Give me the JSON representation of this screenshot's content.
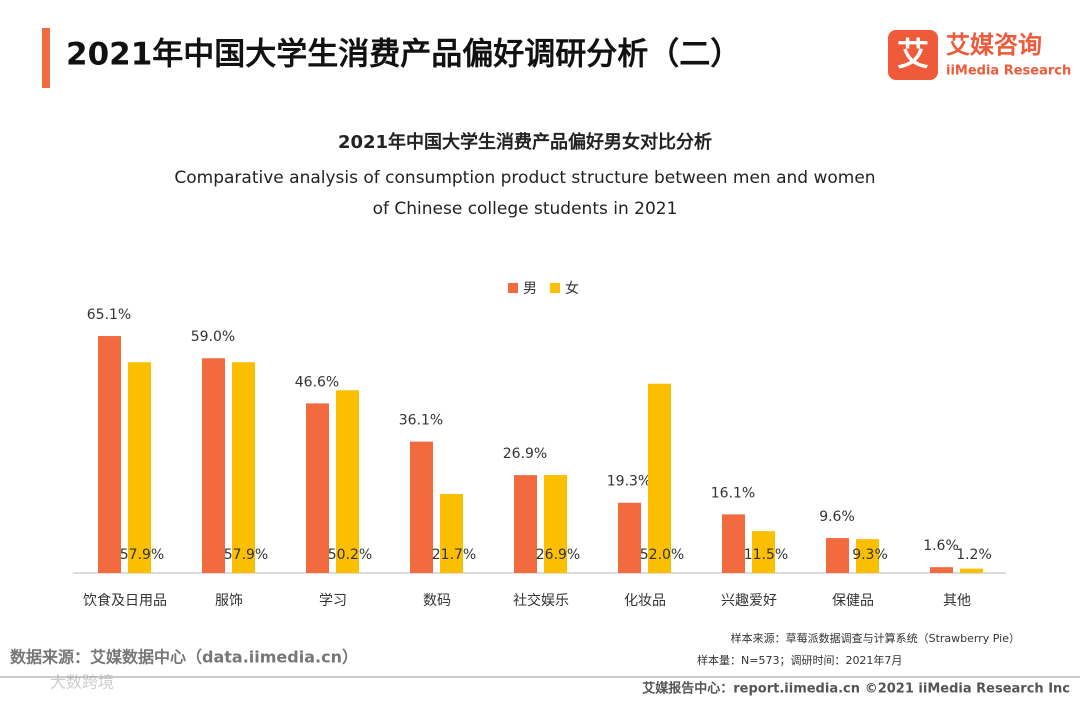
{
  "header": {
    "title": "2021年中国大学生消费产品偏好调研分析（二）",
    "logo_cn": "艾媒咨询",
    "logo_en": "iiMedia Research",
    "logo_mark": "艾"
  },
  "chart_data": {
    "type": "bar",
    "title": "2021年中国大学生消费产品偏好男女对比分析",
    "subtitle": [
      "Comparative analysis of consumption product structure between men and women",
      "of Chinese college students in 2021"
    ],
    "categories": [
      "饮食及日用品",
      "服饰",
      "学习",
      "数码",
      "社交娱乐",
      "化妆品",
      "兴趣爱好",
      "保健品",
      "其他"
    ],
    "series": [
      {
        "name": "男",
        "color": "#f26b3f",
        "values": [
          65.1,
          59.0,
          46.6,
          36.1,
          26.9,
          19.3,
          16.1,
          9.6,
          1.6
        ],
        "value_labels": [
          "65.1%",
          "59.0%",
          "46.6%",
          "36.1%",
          "26.9%",
          "19.3%",
          "16.1%",
          "9.6%",
          "1.6%"
        ]
      },
      {
        "name": "女",
        "color": "#fbbf00",
        "values": [
          57.9,
          57.9,
          50.2,
          21.7,
          26.9,
          52.0,
          11.5,
          9.3,
          1.2
        ],
        "value_labels": [
          "57.9%",
          "57.9%",
          "50.2%",
          "21.7%",
          "26.9%",
          "52.0%",
          "11.5%",
          "9.3%",
          "1.2%"
        ]
      }
    ]
  },
  "footer": {
    "source": "数据来源：艾媒数据中心（data.iimedia.cn）",
    "sample_source": "样本来源：草莓派数据调查与计算系统（Strawberry Pie）",
    "sample_size": "样本量：N=573；调研时间：2021年7月",
    "report_center": "艾媒报告中心：report.iimedia.cn",
    "copyright": "©2021  iiMedia Research  Inc",
    "watermark": "大数跨境"
  }
}
